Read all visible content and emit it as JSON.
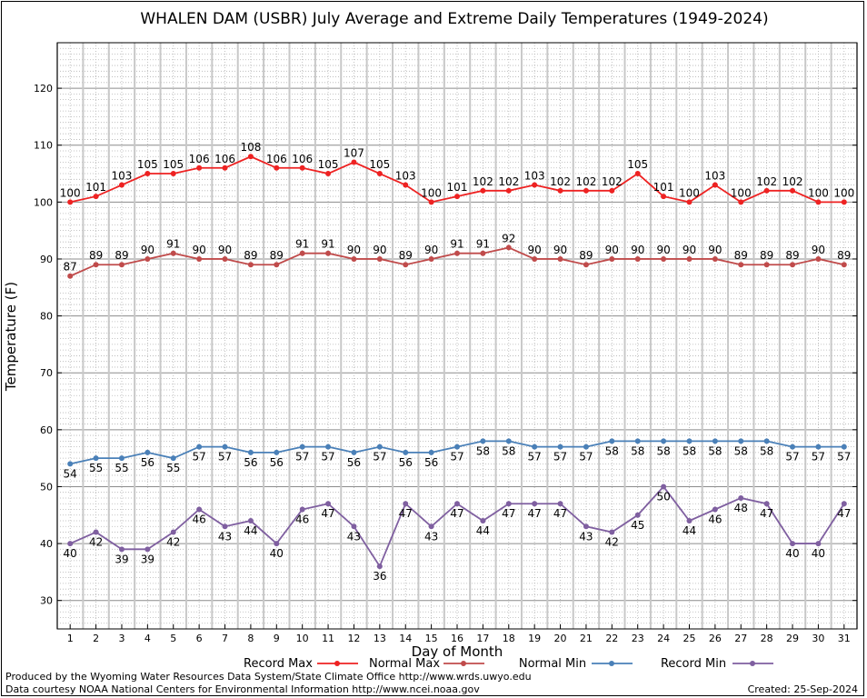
{
  "chart_data": {
    "type": "line",
    "title": "WHALEN DAM (USBR) July Average and Extreme Daily Temperatures (1949-2024)",
    "xlabel": "Day of Month",
    "ylabel": "Temperature (F)",
    "x": [
      1,
      2,
      3,
      4,
      5,
      6,
      7,
      8,
      9,
      10,
      11,
      12,
      13,
      14,
      15,
      16,
      17,
      18,
      19,
      20,
      21,
      22,
      23,
      24,
      25,
      26,
      27,
      28,
      29,
      30,
      31
    ],
    "xlim": [
      0.5,
      31.5
    ],
    "ylim": [
      25,
      128
    ],
    "yticks": [
      30,
      40,
      50,
      60,
      70,
      80,
      90,
      100,
      110,
      120
    ],
    "grid": true,
    "legend_position": "bottom",
    "series": [
      {
        "name": "Record Max",
        "color": "#ee2222",
        "label_pos": "above",
        "values": [
          100,
          101,
          103,
          105,
          105,
          106,
          106,
          108,
          106,
          106,
          105,
          107,
          105,
          103,
          100,
          101,
          102,
          102,
          103,
          102,
          102,
          102,
          105,
          101,
          100,
          103,
          100,
          102,
          102,
          100,
          100
        ]
      },
      {
        "name": "Normal Max",
        "color": "#c04b4b",
        "label_pos": "above",
        "values": [
          87,
          89,
          89,
          90,
          91,
          90,
          90,
          89,
          89,
          91,
          91,
          90,
          90,
          89,
          90,
          91,
          91,
          92,
          90,
          90,
          89,
          90,
          90,
          90,
          90,
          90,
          89,
          89,
          89,
          90,
          89
        ]
      },
      {
        "name": "Normal Min",
        "color": "#4a80b8",
        "label_pos": "below",
        "values": [
          54,
          55,
          55,
          56,
          55,
          57,
          57,
          56,
          56,
          57,
          57,
          56,
          57,
          56,
          56,
          57,
          58,
          58,
          57,
          57,
          57,
          58,
          58,
          58,
          58,
          58,
          58,
          58,
          57,
          57,
          57
        ]
      },
      {
        "name": "Record Min",
        "color": "#7f5fa0",
        "label_pos": "below",
        "values": [
          40,
          42,
          39,
          39,
          42,
          46,
          43,
          44,
          40,
          46,
          47,
          43,
          36,
          47,
          43,
          47,
          44,
          47,
          47,
          47,
          43,
          42,
          45,
          50,
          44,
          46,
          48,
          47,
          40,
          40,
          47
        ]
      }
    ]
  },
  "footer": {
    "produced_by": "Produced by the Wyoming Water Resources Data System/State Climate Office http://www.wrds.uwyo.edu",
    "courtesy": "Data courtesy NOAA National Centers for Environmental Information http://www.ncei.noaa.gov",
    "created": "Created:  25-Sep-2024"
  }
}
